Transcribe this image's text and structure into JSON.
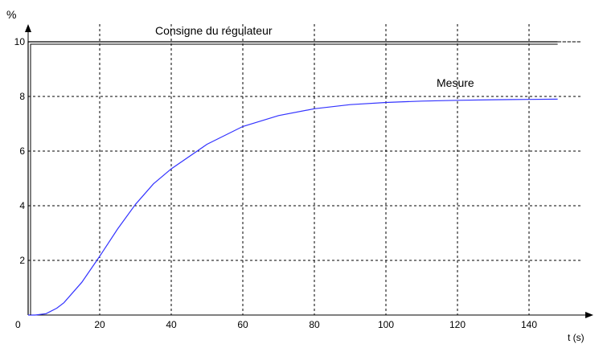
{
  "chart_data": {
    "type": "line",
    "title": "",
    "xlabel": "t (s)",
    "ylabel": "%",
    "xlim": [
      0,
      150
    ],
    "ylim": [
      0,
      10
    ],
    "grid": true,
    "x_ticks": [
      20,
      40,
      60,
      80,
      100,
      120,
      140
    ],
    "y_ticks": [
      2,
      4,
      6,
      8,
      10
    ],
    "origin_label": "0",
    "series": [
      {
        "name": "Consigne du régulateur",
        "color": "#000000",
        "x": [
          0,
          0,
          148
        ],
        "y": [
          0,
          10,
          10
        ]
      },
      {
        "name": "Mesure",
        "color": "#3333ff",
        "x": [
          0,
          2,
          5,
          8,
          10,
          15,
          20,
          25,
          30,
          35,
          40,
          50,
          60,
          70,
          80,
          90,
          100,
          110,
          120,
          130,
          140,
          148
        ],
        "y": [
          0,
          0,
          0.05,
          0.25,
          0.45,
          1.2,
          2.15,
          3.15,
          4.05,
          4.8,
          5.35,
          6.25,
          6.9,
          7.3,
          7.55,
          7.7,
          7.78,
          7.83,
          7.86,
          7.88,
          7.89,
          7.9
        ]
      }
    ]
  }
}
